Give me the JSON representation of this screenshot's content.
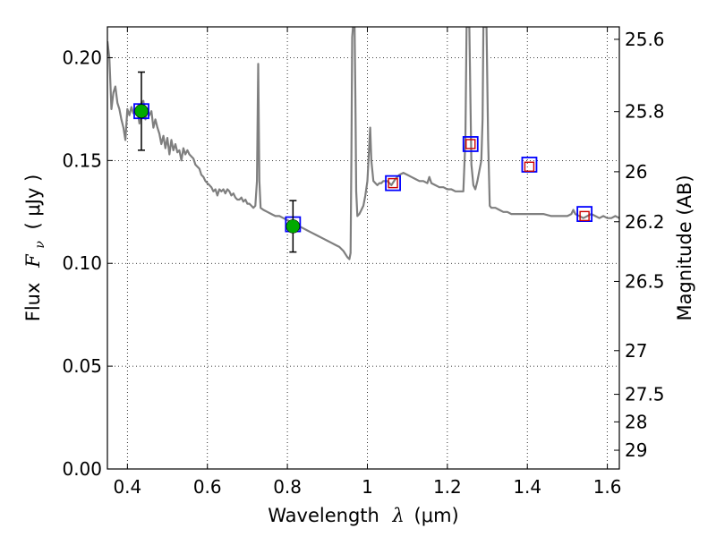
{
  "chart_data": {
    "type": "line",
    "xlabel_text": "Wavelength",
    "xlabel_symbol": "λ",
    "xlabel_unit": "(μm)",
    "ylabel_text": "Flux",
    "ylabel_symbol": "F",
    "ylabel_symbol_sub": "ν",
    "ylabel_unit": "( μJy )",
    "y2label": "Magnitude (AB)",
    "xlim": [
      0.35,
      1.63
    ],
    "ylim": [
      0.0,
      0.215
    ],
    "grid": true,
    "grid_style": "dotted",
    "x_ticks": [
      {
        "value": 0.4,
        "label": "0.4"
      },
      {
        "value": 0.6,
        "label": "0.6"
      },
      {
        "value": 0.8,
        "label": "0.8"
      },
      {
        "value": 1.0,
        "label": "1"
      },
      {
        "value": 1.2,
        "label": "1.2"
      },
      {
        "value": 1.4,
        "label": "1.4"
      },
      {
        "value": 1.6,
        "label": "1.6"
      }
    ],
    "y_ticks": [
      {
        "value": 0.0,
        "label": "0.00"
      },
      {
        "value": 0.05,
        "label": "0.05"
      },
      {
        "value": 0.1,
        "label": "0.10"
      },
      {
        "value": 0.15,
        "label": "0.15"
      },
      {
        "value": 0.2,
        "label": "0.20"
      }
    ],
    "y2_ticks": [
      {
        "mag": 25.6,
        "label": "25.6"
      },
      {
        "mag": 25.8,
        "label": "25.8"
      },
      {
        "mag": 26.0,
        "label": "26"
      },
      {
        "mag": 26.2,
        "label": "26.2"
      },
      {
        "mag": 26.5,
        "label": "26.5"
      },
      {
        "mag": 27.0,
        "label": "27"
      },
      {
        "mag": 27.5,
        "label": "27.5"
      },
      {
        "mag": 28.0,
        "label": "28"
      },
      {
        "mag": 29.0,
        "label": "29"
      }
    ],
    "series": [
      {
        "kind": "model-spectrum",
        "color": "#7f7f7f",
        "points": [
          [
            0.35,
            0.208
          ],
          [
            0.355,
            0.2
          ],
          [
            0.36,
            0.175
          ],
          [
            0.365,
            0.183
          ],
          [
            0.37,
            0.186
          ],
          [
            0.375,
            0.178
          ],
          [
            0.38,
            0.175
          ],
          [
            0.385,
            0.17
          ],
          [
            0.39,
            0.166
          ],
          [
            0.395,
            0.16
          ],
          [
            0.4,
            0.175
          ],
          [
            0.405,
            0.172
          ],
          [
            0.41,
            0.176
          ],
          [
            0.415,
            0.173
          ],
          [
            0.42,
            0.174
          ],
          [
            0.425,
            0.175
          ],
          [
            0.43,
            0.168
          ],
          [
            0.435,
            0.178
          ],
          [
            0.44,
            0.179
          ],
          [
            0.445,
            0.17
          ],
          [
            0.45,
            0.175
          ],
          [
            0.455,
            0.172
          ],
          [
            0.46,
            0.174
          ],
          [
            0.465,
            0.166
          ],
          [
            0.47,
            0.17
          ],
          [
            0.475,
            0.166
          ],
          [
            0.48,
            0.163
          ],
          [
            0.485,
            0.158
          ],
          [
            0.49,
            0.162
          ],
          [
            0.495,
            0.156
          ],
          [
            0.5,
            0.161
          ],
          [
            0.505,
            0.153
          ],
          [
            0.51,
            0.16
          ],
          [
            0.515,
            0.155
          ],
          [
            0.52,
            0.158
          ],
          [
            0.525,
            0.154
          ],
          [
            0.53,
            0.155
          ],
          [
            0.535,
            0.15
          ],
          [
            0.54,
            0.156
          ],
          [
            0.545,
            0.153
          ],
          [
            0.55,
            0.155
          ],
          [
            0.555,
            0.153
          ],
          [
            0.56,
            0.152
          ],
          [
            0.565,
            0.151
          ],
          [
            0.57,
            0.148
          ],
          [
            0.575,
            0.147
          ],
          [
            0.58,
            0.146
          ],
          [
            0.585,
            0.143
          ],
          [
            0.59,
            0.142
          ],
          [
            0.595,
            0.14
          ],
          [
            0.6,
            0.139
          ],
          [
            0.605,
            0.138
          ],
          [
            0.61,
            0.137
          ],
          [
            0.615,
            0.135
          ],
          [
            0.62,
            0.136
          ],
          [
            0.625,
            0.133
          ],
          [
            0.63,
            0.136
          ],
          [
            0.635,
            0.135
          ],
          [
            0.64,
            0.136
          ],
          [
            0.645,
            0.134
          ],
          [
            0.65,
            0.136
          ],
          [
            0.655,
            0.135
          ],
          [
            0.66,
            0.133
          ],
          [
            0.665,
            0.134
          ],
          [
            0.67,
            0.132
          ],
          [
            0.675,
            0.131
          ],
          [
            0.68,
            0.131
          ],
          [
            0.685,
            0.132
          ],
          [
            0.69,
            0.13
          ],
          [
            0.695,
            0.131
          ],
          [
            0.7,
            0.129
          ],
          [
            0.705,
            0.129
          ],
          [
            0.71,
            0.128
          ],
          [
            0.715,
            0.127
          ],
          [
            0.72,
            0.128
          ],
          [
            0.724,
            0.14
          ],
          [
            0.727,
            0.197
          ],
          [
            0.73,
            0.14
          ],
          [
            0.733,
            0.127
          ],
          [
            0.74,
            0.126
          ],
          [
            0.75,
            0.125
          ],
          [
            0.76,
            0.124
          ],
          [
            0.77,
            0.123
          ],
          [
            0.78,
            0.123
          ],
          [
            0.79,
            0.122
          ],
          [
            0.8,
            0.121
          ],
          [
            0.81,
            0.12
          ],
          [
            0.82,
            0.119
          ],
          [
            0.83,
            0.118
          ],
          [
            0.84,
            0.117
          ],
          [
            0.85,
            0.116
          ],
          [
            0.86,
            0.115
          ],
          [
            0.87,
            0.114
          ],
          [
            0.88,
            0.113
          ],
          [
            0.89,
            0.112
          ],
          [
            0.9,
            0.111
          ],
          [
            0.91,
            0.11
          ],
          [
            0.92,
            0.109
          ],
          [
            0.93,
            0.108
          ],
          [
            0.94,
            0.106
          ],
          [
            0.95,
            0.103
          ],
          [
            0.955,
            0.102
          ],
          [
            0.958,
            0.105
          ],
          [
            0.96,
            0.15
          ],
          [
            0.962,
            0.21
          ],
          [
            0.964,
            0.215
          ],
          [
            0.968,
            0.215
          ],
          [
            0.97,
            0.18
          ],
          [
            0.972,
            0.135
          ],
          [
            0.975,
            0.123
          ],
          [
            0.98,
            0.124
          ],
          [
            0.985,
            0.126
          ],
          [
            0.99,
            0.128
          ],
          [
            0.995,
            0.133
          ],
          [
            1.0,
            0.14
          ],
          [
            1.004,
            0.155
          ],
          [
            1.007,
            0.166
          ],
          [
            1.01,
            0.15
          ],
          [
            1.015,
            0.14
          ],
          [
            1.02,
            0.139
          ],
          [
            1.025,
            0.138
          ],
          [
            1.03,
            0.139
          ],
          [
            1.035,
            0.139
          ],
          [
            1.04,
            0.14
          ],
          [
            1.05,
            0.14
          ],
          [
            1.06,
            0.138
          ],
          [
            1.07,
            0.141
          ],
          [
            1.08,
            0.143
          ],
          [
            1.09,
            0.144
          ],
          [
            1.1,
            0.143
          ],
          [
            1.11,
            0.142
          ],
          [
            1.12,
            0.141
          ],
          [
            1.13,
            0.14
          ],
          [
            1.14,
            0.14
          ],
          [
            1.15,
            0.139
          ],
          [
            1.155,
            0.142
          ],
          [
            1.16,
            0.139
          ],
          [
            1.17,
            0.138
          ],
          [
            1.18,
            0.137
          ],
          [
            1.19,
            0.137
          ],
          [
            1.2,
            0.136
          ],
          [
            1.21,
            0.136
          ],
          [
            1.22,
            0.135
          ],
          [
            1.23,
            0.135
          ],
          [
            1.24,
            0.135
          ],
          [
            1.245,
            0.16
          ],
          [
            1.248,
            0.215
          ],
          [
            1.255,
            0.215
          ],
          [
            1.26,
            0.148
          ],
          [
            1.265,
            0.138
          ],
          [
            1.27,
            0.136
          ],
          [
            1.275,
            0.14
          ],
          [
            1.28,
            0.145
          ],
          [
            1.285,
            0.15
          ],
          [
            1.288,
            0.17
          ],
          [
            1.29,
            0.215
          ],
          [
            1.298,
            0.215
          ],
          [
            1.302,
            0.16
          ],
          [
            1.306,
            0.128
          ],
          [
            1.31,
            0.127
          ],
          [
            1.32,
            0.127
          ],
          [
            1.33,
            0.126
          ],
          [
            1.34,
            0.125
          ],
          [
            1.35,
            0.125
          ],
          [
            1.36,
            0.124
          ],
          [
            1.38,
            0.124
          ],
          [
            1.4,
            0.124
          ],
          [
            1.42,
            0.124
          ],
          [
            1.44,
            0.124
          ],
          [
            1.46,
            0.123
          ],
          [
            1.48,
            0.123
          ],
          [
            1.5,
            0.123
          ],
          [
            1.51,
            0.124
          ],
          [
            1.515,
            0.126
          ],
          [
            1.52,
            0.124
          ],
          [
            1.53,
            0.123
          ],
          [
            1.54,
            0.122
          ],
          [
            1.55,
            0.123
          ],
          [
            1.56,
            0.124
          ],
          [
            1.57,
            0.123
          ],
          [
            1.58,
            0.122
          ],
          [
            1.59,
            0.123
          ],
          [
            1.6,
            0.122
          ],
          [
            1.61,
            0.122
          ],
          [
            1.62,
            0.123
          ],
          [
            1.63,
            0.122
          ]
        ]
      },
      {
        "kind": "model-photometry",
        "edge_color": "#0000ff",
        "points": [
          {
            "x": 0.435,
            "y": 0.174
          },
          {
            "x": 0.814,
            "y": 0.119
          },
          {
            "x": 1.064,
            "y": 0.139
          },
          {
            "x": 1.258,
            "y": 0.158
          },
          {
            "x": 1.405,
            "y": 0.148
          },
          {
            "x": 1.543,
            "y": 0.124
          }
        ]
      },
      {
        "kind": "detections",
        "color": "#00aa00",
        "points": [
          {
            "x": 0.435,
            "y": 0.174,
            "yerr": 0.019
          },
          {
            "x": 0.814,
            "y": 0.118,
            "yerr": 0.0125
          }
        ]
      },
      {
        "kind": "upper-limits",
        "color": "#cc0000",
        "points": [
          {
            "x": 1.064,
            "y": 0.139
          },
          {
            "x": 1.258,
            "y": 0.158
          },
          {
            "x": 1.405,
            "y": 0.147
          },
          {
            "x": 1.543,
            "y": 0.123
          }
        ]
      }
    ]
  }
}
